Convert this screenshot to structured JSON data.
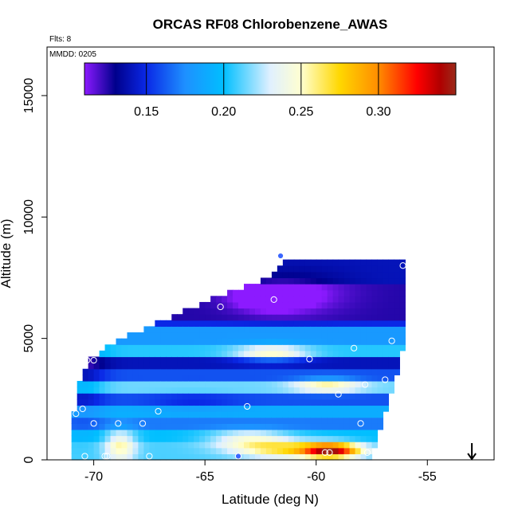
{
  "chart_data": {
    "type": "heatmap",
    "title": "ORCAS RF08 Chlorobenzene_AWAS",
    "annotations": {
      "flights": "Flts: 8",
      "mmdd": "MMDD: 0205"
    },
    "xlabel": "Latitude (deg N)",
    "ylabel": "Altitude (m)",
    "xlim": [
      -72.1,
      -52.0
    ],
    "ylim": [
      0,
      17000
    ],
    "x_ticks": [
      -70,
      -65,
      -60,
      -55
    ],
    "x_tick_labels": [
      "-70",
      "-65",
      "-60",
      "-55"
    ],
    "y_ticks": [
      0,
      5000,
      10000,
      15000
    ],
    "y_tick_labels": [
      "0",
      "5000",
      "10000",
      "15000"
    ],
    "colorbar": {
      "min": 0.11,
      "max": 0.35,
      "ticks": [
        0.15,
        0.2,
        0.25,
        0.3
      ],
      "tick_labels": [
        "0.15",
        "0.20",
        "0.25",
        "0.30"
      ],
      "colors": [
        "#8c1aff",
        "#00008c",
        "#0a28e6",
        "#1e90ff",
        "#00bfff",
        "#e0f0ff",
        "#ffffd0",
        "#ffd700",
        "#ff8c00",
        "#ff0000",
        "#b00000",
        "#9a2a1a"
      ],
      "color_stops": [
        0.11,
        0.13,
        0.15,
        0.175,
        0.2,
        0.23,
        0.25,
        0.275,
        0.3,
        0.325,
        0.34,
        0.35
      ]
    },
    "domain_envelope": [
      [
        -71.0,
        0,
        1500
      ],
      [
        -70.6,
        0,
        3300
      ],
      [
        -70.2,
        0,
        4100
      ],
      [
        -69.2,
        0,
        4800
      ],
      [
        -67.5,
        0,
        5500
      ],
      [
        -66.0,
        0,
        6100
      ],
      [
        -64.0,
        0,
        6900
      ],
      [
        -62.2,
        0,
        7500
      ],
      [
        -61.5,
        0,
        8200
      ],
      [
        -60.0,
        0,
        8200
      ],
      [
        -59.0,
        0,
        8200
      ],
      [
        -58.0,
        0,
        8200
      ],
      [
        -57.7,
        0,
        8200
      ],
      [
        -57.5,
        0,
        8200
      ],
      [
        -57.0,
        1600,
        8200
      ],
      [
        -56.5,
        3000,
        8200
      ],
      [
        -56.0,
        5000,
        8200
      ]
    ],
    "bands": [
      {
        "alt": [
          7200,
          8200
        ],
        "value": 0.14
      },
      {
        "alt": [
          5800,
          7200
        ],
        "value": 0.125
      },
      {
        "alt": [
          5400,
          5800
        ],
        "value": 0.15
      },
      {
        "alt": [
          4700,
          5400
        ],
        "value": 0.18
      },
      {
        "alt": [
          4200,
          4700
        ],
        "value": 0.205
      },
      {
        "alt": [
          3800,
          4200
        ],
        "value": 0.14
      },
      {
        "alt": [
          3300,
          3800
        ],
        "value": 0.16
      },
      {
        "alt": [
          2700,
          3300
        ],
        "value": 0.215
      },
      {
        "alt": [
          2200,
          2700
        ],
        "value": 0.16
      },
      {
        "alt": [
          1700,
          2200
        ],
        "value": 0.19
      },
      {
        "alt": [
          1200,
          1700
        ],
        "value": 0.17
      },
      {
        "alt": [
          700,
          1200
        ],
        "value": 0.2
      },
      {
        "alt": [
          0,
          700
        ],
        "value": 0.21
      }
    ],
    "hotspots": [
      {
        "lat": -62.0,
        "alt": 6700,
        "sx": 1.6,
        "sy": 500,
        "delta": -0.035
      },
      {
        "lat": -61.0,
        "alt": 6900,
        "sx": 2.5,
        "sy": 900,
        "delta": -0.015
      },
      {
        "lat": -62.0,
        "alt": 4400,
        "sx": 1.6,
        "sy": 350,
        "delta": 0.045
      },
      {
        "lat": -59.5,
        "alt": 3100,
        "sx": 1.5,
        "sy": 300,
        "delta": 0.04
      },
      {
        "lat": -59.3,
        "alt": 400,
        "sx": 1.3,
        "sy": 300,
        "delta": 0.12
      },
      {
        "lat": -61.5,
        "alt": 450,
        "sx": 2.2,
        "sy": 350,
        "delta": 0.055
      },
      {
        "lat": -63.0,
        "alt": 900,
        "sx": 1.8,
        "sy": 350,
        "delta": 0.04
      },
      {
        "lat": -68.8,
        "alt": 600,
        "sx": 0.7,
        "sy": 700,
        "delta": 0.045
      },
      {
        "lat": -65.5,
        "alt": 2400,
        "sx": 2.0,
        "sy": 400,
        "delta": -0.01
      },
      {
        "lat": -70.5,
        "alt": 3500,
        "sx": 1.0,
        "sy": 2000,
        "delta": -0.02
      }
    ],
    "samples": [
      {
        "lat": -61.6,
        "alt": 8400,
        "filled": true
      },
      {
        "lat": -56.1,
        "alt": 8000,
        "filled": false
      },
      {
        "lat": -61.9,
        "alt": 6600,
        "filled": false
      },
      {
        "lat": -64.3,
        "alt": 6300,
        "filled": false
      },
      {
        "lat": -56.6,
        "alt": 4900,
        "filled": false
      },
      {
        "lat": -58.3,
        "alt": 4600,
        "filled": false
      },
      {
        "lat": -60.3,
        "alt": 4150,
        "filled": false
      },
      {
        "lat": -70.3,
        "alt": 4100,
        "filled": false
      },
      {
        "lat": -70.0,
        "alt": 4100,
        "filled": false
      },
      {
        "lat": -56.9,
        "alt": 3300,
        "filled": false
      },
      {
        "lat": -57.8,
        "alt": 3100,
        "filled": false
      },
      {
        "lat": -59.0,
        "alt": 2700,
        "filled": false
      },
      {
        "lat": -63.1,
        "alt": 2200,
        "filled": false
      },
      {
        "lat": -70.5,
        "alt": 2100,
        "filled": false
      },
      {
        "lat": -67.1,
        "alt": 2000,
        "filled": false
      },
      {
        "lat": -70.8,
        "alt": 1900,
        "filled": false
      },
      {
        "lat": -58.0,
        "alt": 1500,
        "filled": false
      },
      {
        "lat": -70.0,
        "alt": 1500,
        "filled": false
      },
      {
        "lat": -68.9,
        "alt": 1500,
        "filled": false
      },
      {
        "lat": -67.8,
        "alt": 1500,
        "filled": false
      },
      {
        "lat": -71.2,
        "alt": 150,
        "filled": false
      },
      {
        "lat": -70.4,
        "alt": 150,
        "filled": false
      },
      {
        "lat": -69.5,
        "alt": 150,
        "filled": false
      },
      {
        "lat": -69.4,
        "alt": 150,
        "filled": false
      },
      {
        "lat": -67.5,
        "alt": 150,
        "filled": false
      },
      {
        "lat": -63.5,
        "alt": 150,
        "filled": true
      },
      {
        "lat": -59.6,
        "alt": 300,
        "filled": false
      },
      {
        "lat": -59.4,
        "alt": 300,
        "filled": false
      },
      {
        "lat": -57.7,
        "alt": 300,
        "filled": false
      }
    ],
    "arrow_marker": {
      "lat": -53.0,
      "direction": "down"
    }
  }
}
